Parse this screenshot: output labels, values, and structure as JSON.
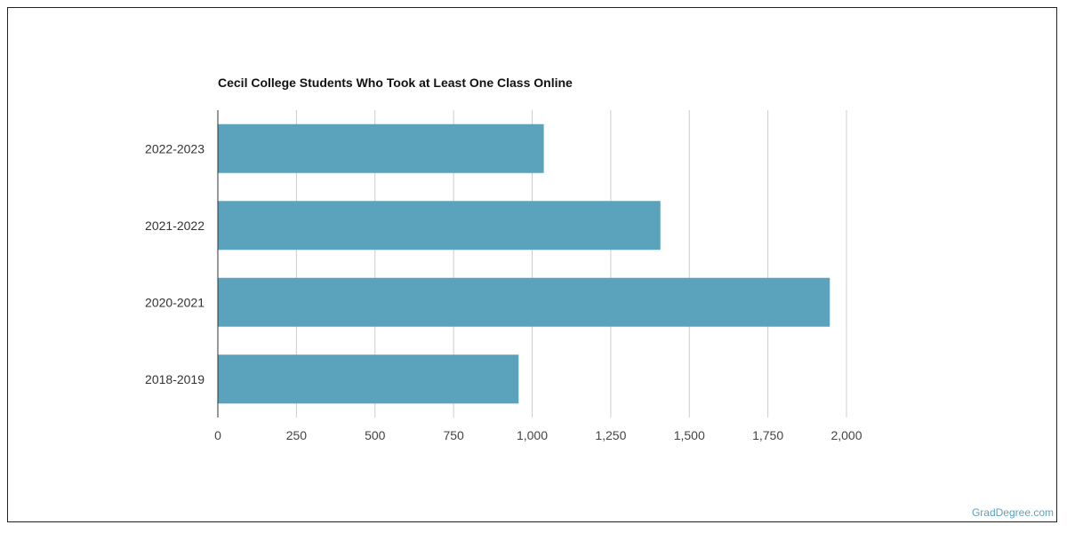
{
  "brand": {
    "credit": "GradDegree.com",
    "accent": "#5ba2bd"
  },
  "chart_data": {
    "type": "bar",
    "orientation": "horizontal",
    "title": "Cecil College Students Who Took at Least One Class Online",
    "categories": [
      "2022-2023",
      "2021-2022",
      "2020-2021",
      "2018-2019"
    ],
    "values": [
      1037,
      1408,
      1947,
      957
    ],
    "xlim": [
      0,
      2000
    ],
    "xticks": [
      0,
      250,
      500,
      750,
      1000,
      1250,
      1500,
      1750,
      2000
    ],
    "xtick_labels": [
      "0",
      "250",
      "500",
      "750",
      "1,000",
      "1,250",
      "1,500",
      "1,750",
      "2,000"
    ],
    "bar_color": "#5ba2bd",
    "grid": true
  }
}
